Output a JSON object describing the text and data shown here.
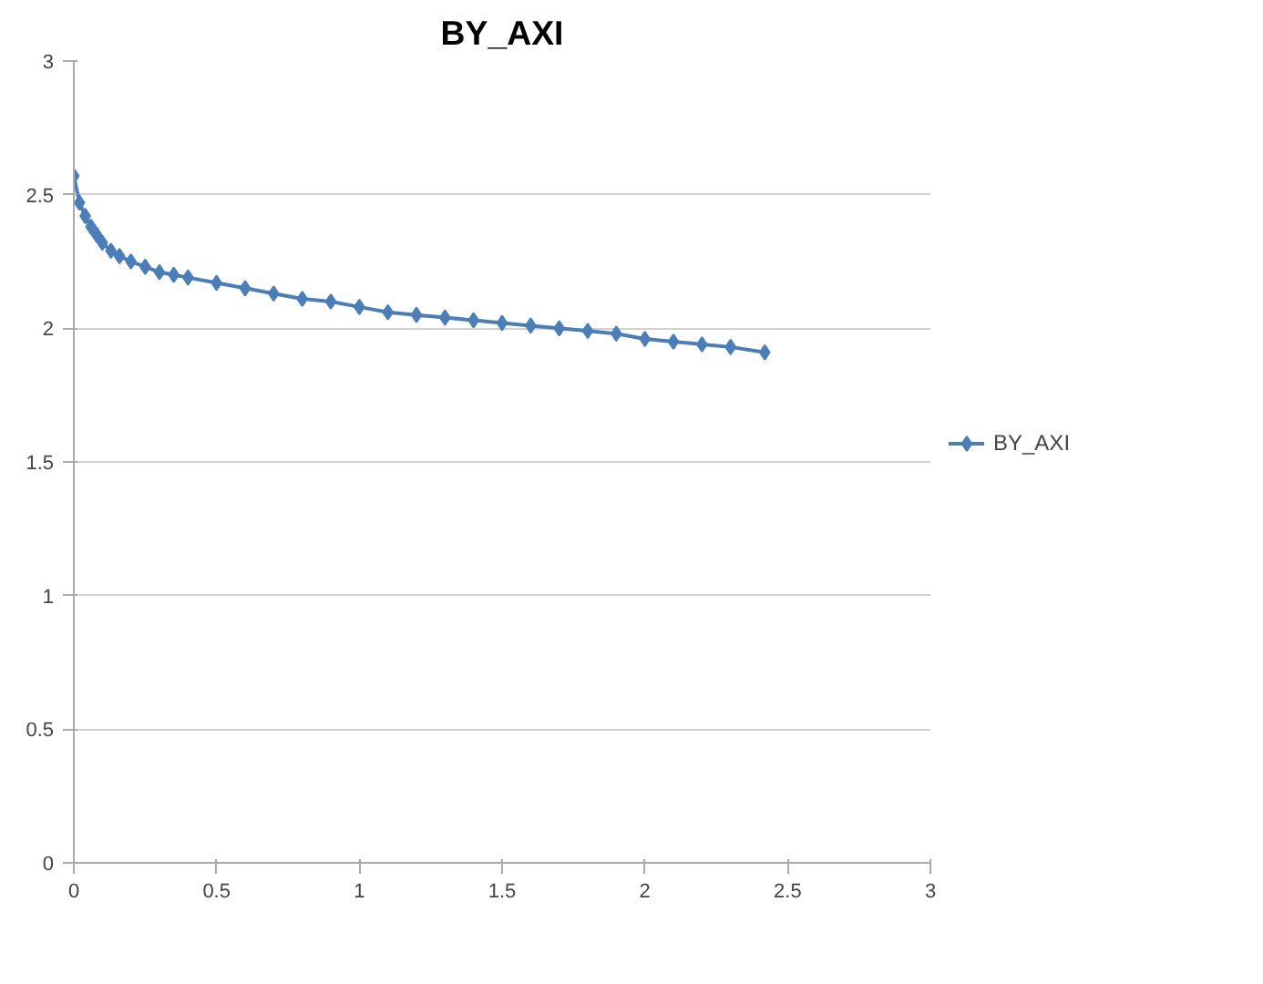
{
  "chart_data": {
    "type": "line",
    "title": "BY_AXI",
    "series": [
      {
        "name": "BY_AXI",
        "color": "#4a7ebb",
        "x": [
          0,
          0.02,
          0.04,
          0.06,
          0.08,
          0.1,
          0.13,
          0.16,
          0.2,
          0.25,
          0.3,
          0.35,
          0.4,
          0.5,
          0.6,
          0.7,
          0.8,
          0.9,
          1.0,
          1.1,
          1.2,
          1.3,
          1.4,
          1.5,
          1.6,
          1.7,
          1.8,
          1.9,
          2.0,
          2.1,
          2.2,
          2.3,
          2.42
        ],
        "values": [
          2.57,
          2.47,
          2.42,
          2.38,
          2.35,
          2.32,
          2.29,
          2.27,
          2.25,
          2.23,
          2.21,
          2.2,
          2.19,
          2.17,
          2.15,
          2.13,
          2.11,
          2.1,
          2.08,
          2.06,
          2.05,
          2.04,
          2.03,
          2.02,
          2.01,
          2.0,
          1.99,
          1.98,
          1.96,
          1.95,
          1.94,
          1.93,
          1.91
        ]
      }
    ],
    "xlim": [
      0,
      3
    ],
    "xticks": [
      0,
      0.5,
      1,
      1.5,
      2,
      2.5,
      3
    ],
    "ylim": [
      0,
      3
    ],
    "yticks": [
      0,
      0.5,
      1,
      1.5,
      2,
      2.5,
      3
    ],
    "grid": "y",
    "legend": "right",
    "marker": "diamond",
    "line_style": "solid"
  }
}
